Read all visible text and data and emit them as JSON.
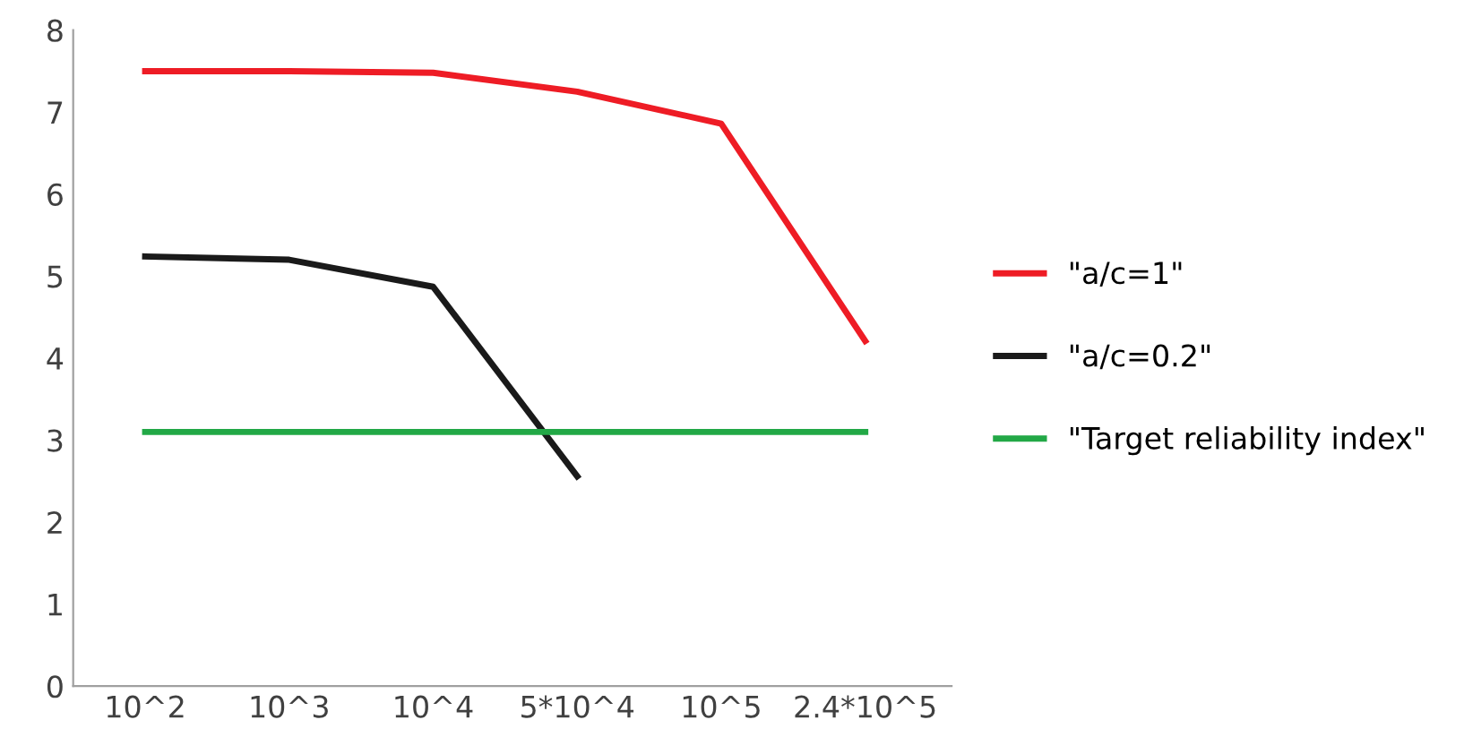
{
  "chart_data": {
    "type": "line",
    "categories": [
      "10^2",
      "10^3",
      "10^4",
      "5*10^4",
      "10^5",
      "2.4*10^5"
    ],
    "series": [
      {
        "name": "\"a/c=1\"",
        "color": "#ee1c25",
        "values": [
          7.5,
          7.5,
          7.48,
          7.25,
          6.86,
          4.21
        ]
      },
      {
        "name": "\"a/c=0.2\"",
        "color": "#1a1a1a",
        "values": [
          5.24,
          5.2,
          4.87,
          2.56,
          null,
          null
        ]
      },
      {
        "name": "\"Target reliability index\"",
        "color": "#22a846",
        "values": [
          3.1,
          3.1,
          3.1,
          3.1,
          3.1,
          3.1
        ]
      }
    ],
    "ylim": [
      0,
      8
    ],
    "yticks": [
      0,
      1,
      2,
      3,
      4,
      5,
      6,
      7,
      8
    ],
    "grid": false,
    "legend": "right",
    "marker": "none",
    "line_style": "solid"
  }
}
